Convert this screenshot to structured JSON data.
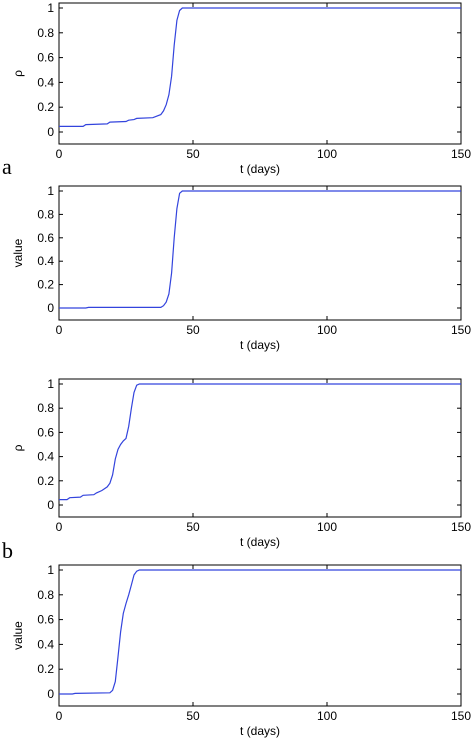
{
  "panel_labels": [
    "a",
    "b"
  ],
  "chart_data": [
    {
      "type": "line",
      "xlabel": "t (days)",
      "ylabel": "ρ",
      "xlim": [
        0,
        150
      ],
      "ylim": [
        0,
        1
      ],
      "xticks": [
        "0",
        "50",
        "100",
        "150"
      ],
      "yticks": [
        "0",
        "0.2",
        "0.4",
        "0.6",
        "0.8",
        "1"
      ],
      "grid": false,
      "color": "#3344dd",
      "series": [
        {
          "x": [
            0,
            5,
            9,
            10,
            18,
            19,
            25,
            26,
            28,
            29,
            35,
            38,
            39,
            40,
            41,
            42,
            43,
            44,
            45,
            46,
            50,
            100,
            150
          ],
          "y": [
            0.045,
            0.045,
            0.045,
            0.06,
            0.065,
            0.08,
            0.085,
            0.095,
            0.1,
            0.11,
            0.115,
            0.14,
            0.17,
            0.22,
            0.3,
            0.45,
            0.7,
            0.9,
            0.98,
            1.0,
            1.0,
            1.0,
            1.0
          ]
        }
      ]
    },
    {
      "type": "line",
      "xlabel": "t (days)",
      "ylabel": "value",
      "xlim": [
        0,
        150
      ],
      "ylim": [
        0,
        1
      ],
      "xticks": [
        "0",
        "50",
        "100",
        "150"
      ],
      "yticks": [
        "0",
        "0.2",
        "0.4",
        "0.6",
        "0.8",
        "1"
      ],
      "grid": false,
      "color": "#3344dd",
      "series": [
        {
          "x": [
            0,
            10,
            11,
            38,
            39,
            40,
            41,
            42,
            43,
            44,
            45,
            46,
            50,
            100,
            150
          ],
          "y": [
            0.0,
            0.0,
            0.005,
            0.005,
            0.02,
            0.05,
            0.12,
            0.3,
            0.6,
            0.85,
            0.98,
            1.0,
            1.0,
            1.0,
            1.0
          ]
        }
      ]
    },
    {
      "type": "line",
      "xlabel": "t (days)",
      "ylabel": "ρ",
      "xlim": [
        0,
        150
      ],
      "ylim": [
        0,
        1
      ],
      "xticks": [
        "0",
        "50",
        "100",
        "150"
      ],
      "yticks": [
        "0",
        "0.2",
        "0.4",
        "0.6",
        "0.8",
        "1"
      ],
      "grid": false,
      "color": "#3344dd",
      "series": [
        {
          "x": [
            0,
            3,
            4,
            8,
            9,
            13,
            14,
            16,
            18,
            19,
            20,
            21,
            22,
            23,
            24,
            25,
            26,
            27,
            28,
            29,
            30,
            50,
            100,
            150
          ],
          "y": [
            0.045,
            0.045,
            0.06,
            0.065,
            0.08,
            0.085,
            0.1,
            0.12,
            0.15,
            0.18,
            0.25,
            0.38,
            0.46,
            0.5,
            0.53,
            0.55,
            0.65,
            0.8,
            0.93,
            0.99,
            1.0,
            1.0,
            1.0,
            1.0
          ]
        }
      ]
    },
    {
      "type": "line",
      "xlabel": "t (days)",
      "ylabel": "value",
      "xlim": [
        0,
        150
      ],
      "ylim": [
        0,
        1
      ],
      "xticks": [
        "0",
        "50",
        "100",
        "150"
      ],
      "yticks": [
        "0",
        "0.2",
        "0.4",
        "0.6",
        "0.8",
        "1"
      ],
      "grid": false,
      "color": "#3344dd",
      "series": [
        {
          "x": [
            0,
            5,
            6,
            19,
            20,
            21,
            22,
            23,
            24,
            25,
            26,
            27,
            28,
            29,
            30,
            50,
            100,
            150
          ],
          "y": [
            0.0,
            0.0,
            0.005,
            0.01,
            0.03,
            0.1,
            0.3,
            0.5,
            0.65,
            0.73,
            0.8,
            0.88,
            0.96,
            0.99,
            1.0,
            1.0,
            1.0,
            1.0
          ]
        }
      ]
    }
  ]
}
